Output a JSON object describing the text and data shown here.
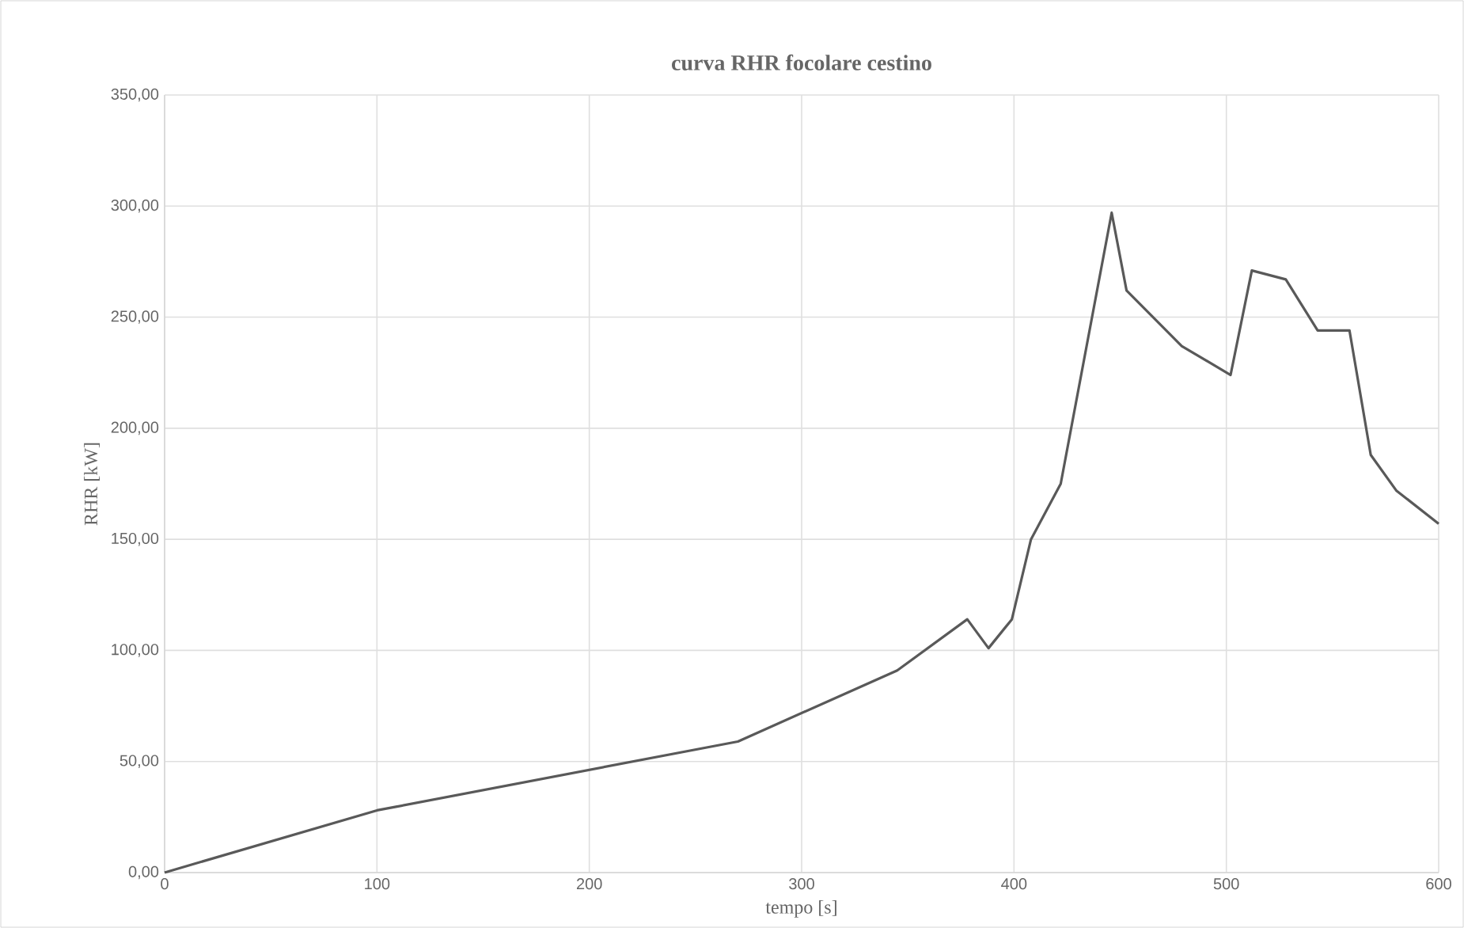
{
  "chart_data": {
    "type": "line",
    "title": "curva RHR focolare cestino",
    "xlabel": "tempo [s]",
    "ylabel": "RHR  [kW]",
    "xlim": [
      0,
      600
    ],
    "ylim": [
      0,
      350
    ],
    "xticks": [
      0,
      100,
      200,
      300,
      400,
      500,
      600
    ],
    "yticks": [
      {
        "value": 0,
        "label": "0,00"
      },
      {
        "value": 50,
        "label": "50,00"
      },
      {
        "value": 100,
        "label": "100,00"
      },
      {
        "value": 150,
        "label": "150,00"
      },
      {
        "value": 200,
        "label": "200,00"
      },
      {
        "value": 250,
        "label": "250,00"
      },
      {
        "value": 300,
        "label": "300,00"
      },
      {
        "value": 350,
        "label": "350,00"
      }
    ],
    "grid": true,
    "marker": "none",
    "line_style": "solid",
    "series": [
      {
        "color": "#595959",
        "x": [
          0,
          100,
          270,
          345,
          378,
          388,
          399,
          408,
          422,
          446,
          453,
          479,
          502,
          512,
          528,
          543,
          558,
          568,
          580,
          600
        ],
        "values": [
          0,
          28,
          59,
          91,
          114,
          101,
          114,
          150,
          175,
          297,
          262,
          237,
          224,
          271,
          267,
          244,
          244,
          188,
          172,
          157
        ]
      }
    ]
  }
}
